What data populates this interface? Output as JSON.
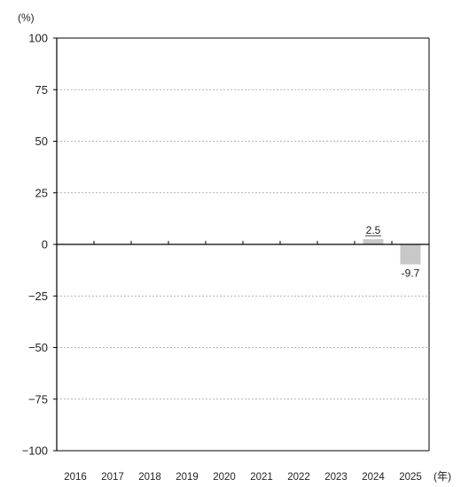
{
  "chart_data": {
    "type": "bar",
    "categories": [
      "2016",
      "2017",
      "2018",
      "2019",
      "2020",
      "2021",
      "2022",
      "2023",
      "2024",
      "2025"
    ],
    "values": [
      null,
      null,
      null,
      null,
      null,
      null,
      null,
      null,
      2.5,
      -9.7
    ],
    "data_labels": [
      "",
      "",
      "",
      "",
      "",
      "",
      "",
      "",
      "2.5",
      "-9.7"
    ],
    "ylim": [
      -100,
      100
    ],
    "yticks": [
      100,
      75,
      50,
      25,
      0,
      -25,
      -50,
      -75,
      -100
    ],
    "ytick_labels": [
      "100",
      "75",
      "50",
      "25",
      "0",
      "−25",
      "−50",
      "−75",
      "−100"
    ],
    "y_unit": "(%)",
    "x_unit": "(年)",
    "grid": "horizontal dashed",
    "bar_color": "#c8c8c8",
    "axis_color": "#000000",
    "grid_color": "#9a9a9a"
  }
}
